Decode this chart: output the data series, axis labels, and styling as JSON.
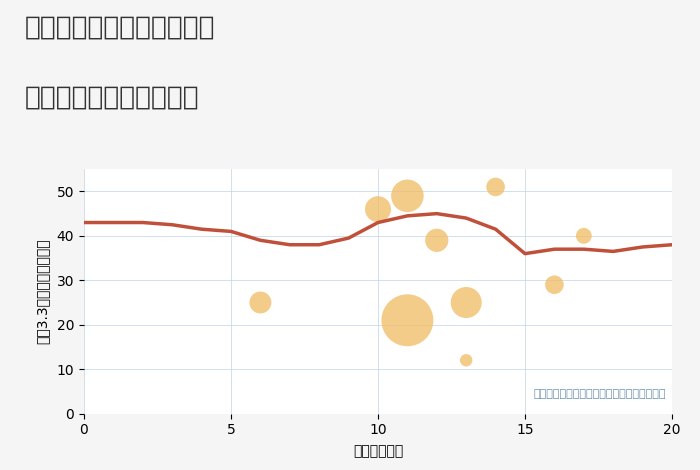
{
  "title_line1": "三重県四日市市平津新町の",
  "title_line2": "駅距離別中古戸建て価格",
  "xlabel": "駅距離（分）",
  "ylabel": "坪（3.3㎡）単価（万円）",
  "background_color": "#f5f5f5",
  "plot_bg_color": "#ffffff",
  "line_color": "#c0503a",
  "line_x": [
    0,
    1,
    2,
    3,
    4,
    5,
    6,
    7,
    8,
    9,
    10,
    11,
    12,
    13,
    14,
    15,
    16,
    17,
    18,
    19,
    20
  ],
  "line_y": [
    43,
    43,
    43,
    42.5,
    41.5,
    41,
    39,
    38,
    38,
    39.5,
    43,
    44.5,
    45,
    44,
    41.5,
    36,
    37,
    37,
    36.5,
    37.5,
    38
  ],
  "scatter_x": [
    6,
    10,
    11,
    11,
    12,
    13,
    13,
    14,
    16,
    17
  ],
  "scatter_y": [
    25,
    46,
    49,
    21,
    39,
    25,
    12,
    51,
    29,
    40
  ],
  "scatter_size": [
    250,
    350,
    550,
    1400,
    280,
    500,
    80,
    180,
    180,
    130
  ],
  "scatter_color": "#f0bc62",
  "scatter_alpha": 0.75,
  "xlim": [
    0,
    20
  ],
  "ylim": [
    0,
    55
  ],
  "xticks": [
    0,
    5,
    10,
    15,
    20
  ],
  "yticks": [
    0,
    10,
    20,
    30,
    40,
    50
  ],
  "grid_color": "#c5d8e8",
  "grid_alpha": 0.8,
  "annotation": "円の大きさは、取引のあった物件面積を示す",
  "annotation_color": "#6a8faf",
  "title_fontsize": 19,
  "label_fontsize": 10,
  "tick_fontsize": 10,
  "annotation_fontsize": 8
}
